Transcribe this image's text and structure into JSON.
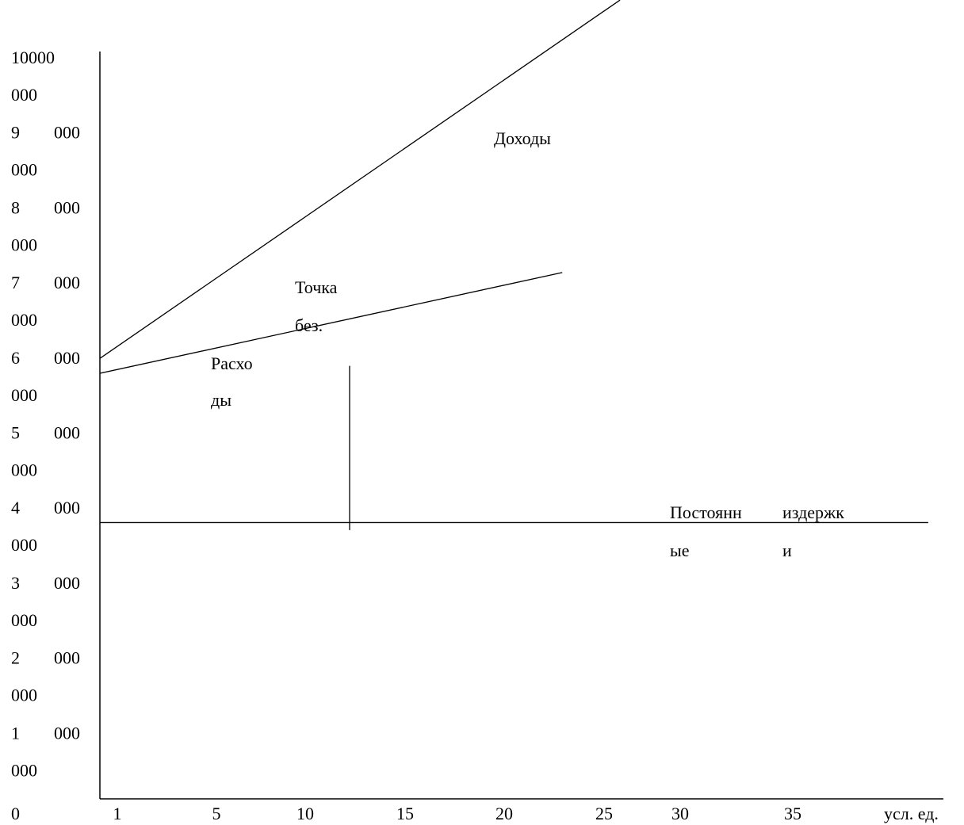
{
  "chart_data": {
    "type": "line",
    "x_ticks": [
      "1",
      "5",
      "10",
      "15",
      "20",
      "25",
      "30",
      "35"
    ],
    "x_unit_label": "усл. ед.",
    "xlim": [
      0,
      44
    ],
    "y_ticks": [
      {
        "value": 10000000,
        "lines": [
          "10000",
          "000"
        ]
      },
      {
        "value": 9000000,
        "lines": [
          "9",
          "000",
          "000"
        ]
      },
      {
        "value": 8000000,
        "lines": [
          "8",
          "000",
          "000"
        ]
      },
      {
        "value": 7000000,
        "lines": [
          "7",
          "000",
          "000"
        ]
      },
      {
        "value": 6000000,
        "lines": [
          "6",
          "000",
          "000"
        ]
      },
      {
        "value": 5000000,
        "lines": [
          "5",
          "000",
          "000"
        ]
      },
      {
        "value": 4000000,
        "lines": [
          "4",
          "000",
          "000"
        ]
      },
      {
        "value": 3000000,
        "lines": [
          "3",
          "000",
          "000"
        ]
      },
      {
        "value": 2000000,
        "lines": [
          "2",
          "000",
          "000"
        ]
      },
      {
        "value": 1000000,
        "lines": [
          "1",
          "000",
          "000"
        ]
      },
      {
        "value": 0,
        "lines": [
          "0"
        ]
      }
    ],
    "ylim": [
      0,
      10000000
    ],
    "series": [
      {
        "name": "Доходы",
        "x": [
          0,
          27
        ],
        "y": [
          5900000,
          10700000
        ]
      },
      {
        "name": "Расходы",
        "x": [
          0,
          24
        ],
        "y": [
          5700000,
          7050000
        ]
      },
      {
        "name": "Постоянные издержки",
        "x": [
          0,
          43
        ],
        "y": [
          3700000,
          3700000
        ]
      }
    ],
    "breakeven_marker": {
      "x": 13,
      "y_from": 3600000,
      "y_to": 5800000
    },
    "annotations": {
      "revenue": [
        "Доходы"
      ],
      "costs": [
        "Расхо",
        "ды"
      ],
      "breakeven": [
        "Точка",
        "без."
      ],
      "fixed_costs": [
        "Постоянн",
        "ые",
        "издержк",
        "и"
      ]
    },
    "grid": false,
    "legend": "none"
  }
}
